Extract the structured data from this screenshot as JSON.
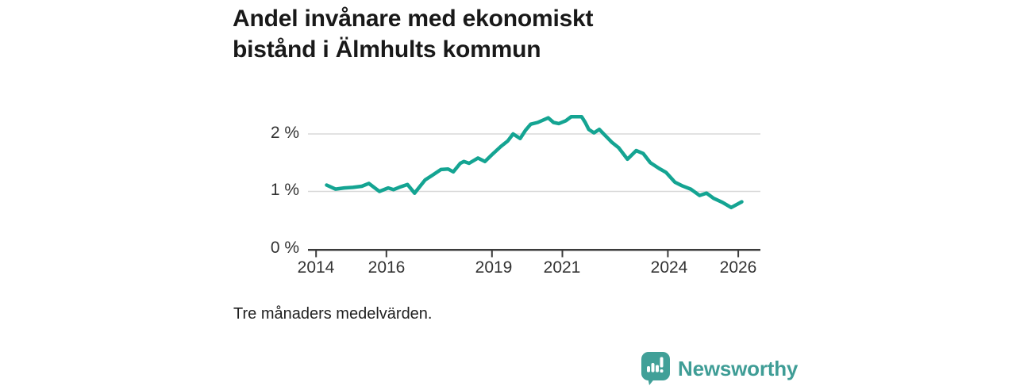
{
  "header": {
    "title_line1": "Andel invånare med ekonomiskt",
    "title_line2": "bistånd i Älmhults kommun"
  },
  "footnote": "Tre månaders medelvärden.",
  "branding": {
    "name": "Newsworthy",
    "logo_icon": "bar-chart-speech-bubble-icon",
    "icon_color": "#41a098",
    "text_color": "#3f9d96"
  },
  "chart_data": {
    "type": "line",
    "title": "Andel invånare med ekonomiskt bistånd i Älmhults kommun",
    "note": "Tre månaders medelvärden.",
    "xlabel": "",
    "ylabel": "",
    "grid": "horizontal gridlines at 1 % and 2 %",
    "legend": "none",
    "line_color": "#14a492",
    "gridline_color": "#d8d8d8",
    "axis_color": "#3b3b3b",
    "x_range": [
      2013.77,
      2026.63
    ],
    "y_range": [
      0,
      2.4
    ],
    "x_ticks": [
      2014,
      2016,
      2019,
      2021,
      2024,
      2026
    ],
    "x_tick_labels": [
      "2014",
      "2016",
      "2019",
      "2021",
      "2024",
      "2026"
    ],
    "y_ticks": [
      0,
      1,
      2
    ],
    "y_tick_labels": [
      "0 %",
      "1 %",
      "2 %"
    ],
    "series": [
      {
        "name": "Andel invånare med ekonomiskt bistånd (%)",
        "points": [
          [
            2014.3,
            1.11
          ],
          [
            2014.55,
            1.04
          ],
          [
            2014.8,
            1.06
          ],
          [
            2015.05,
            1.07
          ],
          [
            2015.3,
            1.09
          ],
          [
            2015.5,
            1.14
          ],
          [
            2015.8,
            1.0
          ],
          [
            2016.05,
            1.06
          ],
          [
            2016.2,
            1.03
          ],
          [
            2016.4,
            1.08
          ],
          [
            2016.6,
            1.12
          ],
          [
            2016.8,
            0.97
          ],
          [
            2017.1,
            1.2
          ],
          [
            2017.3,
            1.28
          ],
          [
            2017.55,
            1.38
          ],
          [
            2017.75,
            1.39
          ],
          [
            2017.9,
            1.34
          ],
          [
            2018.1,
            1.49
          ],
          [
            2018.2,
            1.52
          ],
          [
            2018.35,
            1.49
          ],
          [
            2018.6,
            1.58
          ],
          [
            2018.8,
            1.52
          ],
          [
            2019.0,
            1.64
          ],
          [
            2019.25,
            1.78
          ],
          [
            2019.45,
            1.88
          ],
          [
            2019.6,
            2.0
          ],
          [
            2019.8,
            1.92
          ],
          [
            2019.95,
            2.06
          ],
          [
            2020.1,
            2.17
          ],
          [
            2020.3,
            2.2
          ],
          [
            2020.6,
            2.28
          ],
          [
            2020.75,
            2.2
          ],
          [
            2020.9,
            2.18
          ],
          [
            2021.1,
            2.23
          ],
          [
            2021.25,
            2.3
          ],
          [
            2021.55,
            2.3
          ],
          [
            2021.65,
            2.2
          ],
          [
            2021.75,
            2.08
          ],
          [
            2021.9,
            2.02
          ],
          [
            2022.05,
            2.08
          ],
          [
            2022.4,
            1.86
          ],
          [
            2022.6,
            1.76
          ],
          [
            2022.85,
            1.56
          ],
          [
            2023.1,
            1.71
          ],
          [
            2023.3,
            1.66
          ],
          [
            2023.5,
            1.5
          ],
          [
            2023.75,
            1.4
          ],
          [
            2023.95,
            1.33
          ],
          [
            2024.2,
            1.16
          ],
          [
            2024.4,
            1.1
          ],
          [
            2024.65,
            1.04
          ],
          [
            2024.9,
            0.93
          ],
          [
            2025.1,
            0.97
          ],
          [
            2025.3,
            0.88
          ],
          [
            2025.55,
            0.81
          ],
          [
            2025.8,
            0.72
          ],
          [
            2026.1,
            0.82
          ]
        ]
      }
    ]
  }
}
